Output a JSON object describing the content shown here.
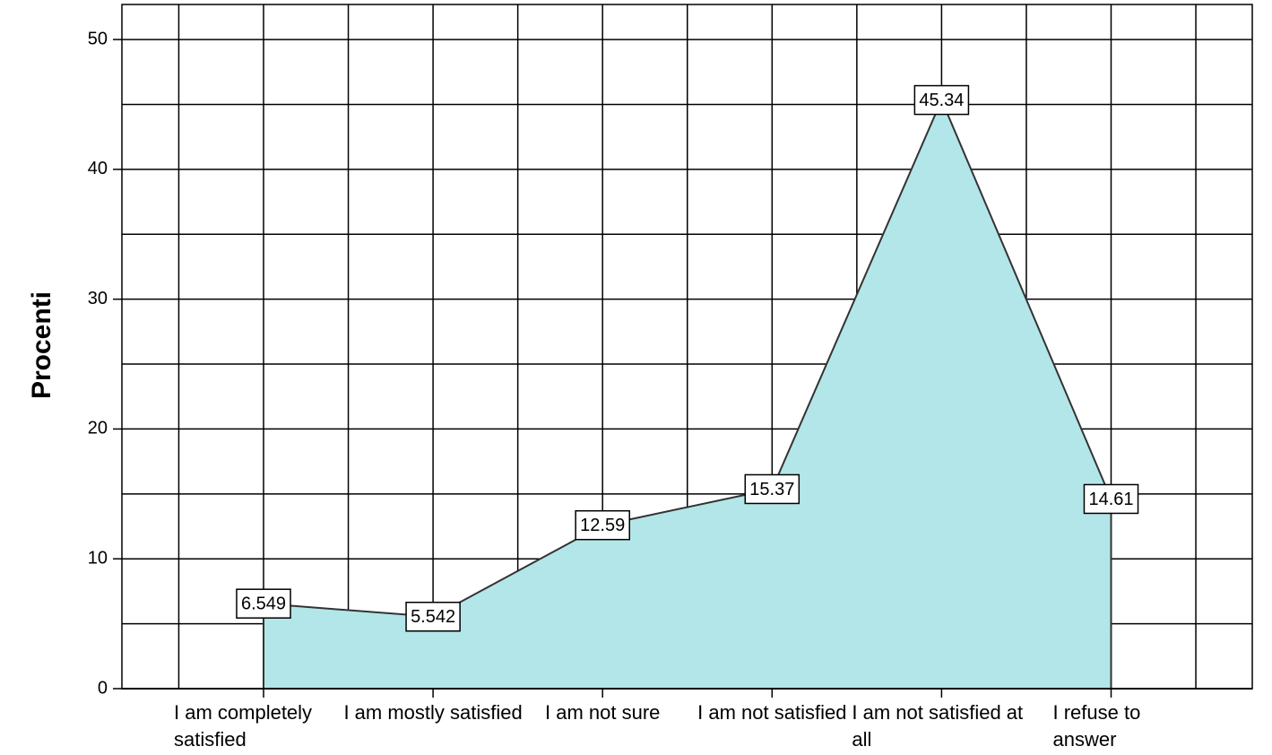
{
  "chart_data": {
    "type": "area",
    "y_label": "Procenti",
    "categories": [
      "I am completely satisfied",
      "I am mostly satisfied",
      "I am not sure",
      "I am not satisfied",
      "I am not satisfied at all",
      "I refuse to answer"
    ],
    "values": [
      6.549,
      5.542,
      12.59,
      15.37,
      45.34,
      14.61
    ],
    "color": "#b3e6e8",
    "ylim": [
      0,
      52.7
    ],
    "yticks": [
      0,
      10,
      20,
      30,
      40,
      50
    ],
    "minor_yticks": [
      5,
      15,
      25,
      35,
      45
    ],
    "grid": true
  }
}
